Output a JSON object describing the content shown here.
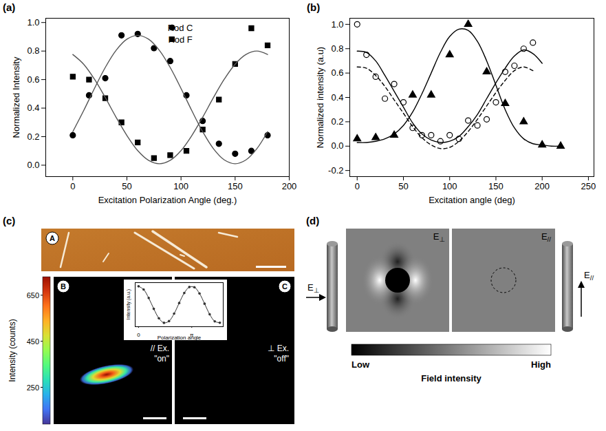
{
  "chart_data": [
    {
      "panel": "(a)",
      "type": "scatter",
      "x_label": "Excitation Polarization Angle (deg.)",
      "y_label": "Normalized Intensity",
      "xlim": [
        -25,
        200
      ],
      "xticks": [
        0,
        50,
        100,
        150,
        200
      ],
      "ylim": [
        -0.08,
        1.03
      ],
      "yticks": [
        {
          "value": 0,
          "label": "0.0"
        },
        0.2,
        0.4,
        0.6,
        0.8,
        {
          "value": 1,
          "label": "1.0"
        }
      ],
      "legend": "top",
      "series": [
        {
          "name": "Rod C",
          "type": "scatter",
          "marker": "circle",
          "color": "#000000",
          "x": [
            0,
            15,
            30,
            45,
            60,
            75,
            90,
            105,
            120,
            135,
            150,
            165,
            180
          ],
          "values": [
            0.21,
            0.49,
            0.61,
            0.91,
            0.92,
            0.82,
            0.73,
            0.49,
            0.31,
            0.15,
            0.08,
            0.1,
            0.21
          ]
        },
        {
          "name": "Rod F",
          "type": "scatter",
          "marker": "square",
          "color": "#000000",
          "x": [
            0,
            15,
            30,
            45,
            60,
            75,
            90,
            105,
            120,
            135,
            150,
            165,
            180
          ],
          "values": [
            0.62,
            0.6,
            0.47,
            0.3,
            0.16,
            0.05,
            0.07,
            0.1,
            0.25,
            0.46,
            0.71,
            0.96,
            0.84
          ]
        },
        {
          "type": "line",
          "line_style": "solid",
          "color": "#555555",
          "x": [
            0,
            10,
            20,
            30,
            40,
            50,
            60,
            70,
            80,
            90,
            100,
            110,
            120,
            130,
            140,
            150,
            160,
            170,
            180
          ],
          "values": [
            0.235,
            0.382,
            0.538,
            0.685,
            0.805,
            0.883,
            0.91,
            0.883,
            0.805,
            0.685,
            0.538,
            0.382,
            0.235,
            0.115,
            0.037,
            0.01,
            0.037,
            0.115,
            0.235
          ]
        },
        {
          "type": "line",
          "line_style": "solid",
          "color": "#555555",
          "x": [
            0,
            10,
            20,
            30,
            40,
            50,
            60,
            70,
            80,
            90,
            100,
            110,
            120,
            130,
            140,
            150,
            160,
            170,
            180
          ],
          "values": [
            0.776,
            0.708,
            0.603,
            0.474,
            0.336,
            0.208,
            0.102,
            0.034,
            0.01,
            0.034,
            0.102,
            0.208,
            0.336,
            0.474,
            0.603,
            0.708,
            0.776,
            0.8,
            0.776
          ]
        }
      ]
    },
    {
      "panel": "(b)",
      "type": "scatter",
      "x_label": "Excitation angle (deg)",
      "y_label": "Normalized intensity (a.u)",
      "xlim": [
        -8,
        256
      ],
      "xticks": [
        0,
        50,
        100,
        150,
        200,
        250
      ],
      "ylim": [
        -0.25,
        1.05
      ],
      "yticks": [
        -0.2,
        {
          "value": 0,
          "label": "0.0"
        },
        0.2,
        0.4,
        0.6,
        0.8,
        {
          "value": 1,
          "label": "1.0"
        }
      ],
      "series": [
        {
          "type": "scatter",
          "marker": "open-circle",
          "color": "#000000",
          "x": [
            0,
            10,
            20,
            30,
            40,
            50,
            60,
            70,
            80,
            90,
            100,
            110,
            120,
            130,
            140,
            150,
            160,
            170,
            180,
            190
          ],
          "values": [
            1.0,
            0.75,
            0.57,
            0.39,
            0.51,
            0.36,
            0.15,
            0.09,
            0.09,
            0.04,
            0.09,
            0.06,
            0.21,
            0.17,
            0.22,
            0.36,
            0.61,
            0.66,
            0.8,
            0.85
          ]
        },
        {
          "type": "scatter",
          "marker": "triangle",
          "color": "#000000",
          "x": [
            0,
            20,
            40,
            60,
            80,
            100,
            120,
            140,
            160,
            180,
            200,
            220
          ],
          "values": [
            0.06,
            0.07,
            0.09,
            0.42,
            0.42,
            0.75,
            1.0,
            0.61,
            0.35,
            0.2,
            0.01,
            0.0
          ]
        },
        {
          "type": "line",
          "line_style": "solid",
          "color": "#000000",
          "x": [
            0,
            10,
            20,
            30,
            40,
            50,
            60,
            70,
            80,
            90,
            100,
            110,
            120,
            130,
            140,
            150,
            160,
            170,
            180,
            190,
            200
          ],
          "values": [
            0.78,
            0.77,
            0.7,
            0.58,
            0.45,
            0.32,
            0.19,
            0.1,
            0.05,
            0.03,
            0.04,
            0.08,
            0.16,
            0.26,
            0.39,
            0.52,
            0.64,
            0.74,
            0.79,
            0.76,
            0.68
          ]
        },
        {
          "type": "line",
          "line_style": "dashed",
          "color": "#000000",
          "x": [
            0,
            10,
            20,
            30,
            40,
            50,
            60,
            70,
            80,
            90,
            100,
            110,
            120,
            130,
            140,
            150,
            160,
            170,
            180,
            190
          ],
          "values": [
            0.65,
            0.64,
            0.58,
            0.49,
            0.38,
            0.27,
            0.16,
            0.07,
            0.01,
            -0.02,
            -0.01,
            0.04,
            0.12,
            0.22,
            0.33,
            0.44,
            0.54,
            0.62,
            0.65,
            0.62
          ]
        },
        {
          "type": "line",
          "line_style": "solid",
          "color": "#000000",
          "x": [
            0,
            10,
            20,
            30,
            40,
            50,
            60,
            70,
            80,
            90,
            100,
            110,
            120,
            130,
            140,
            150,
            160,
            170,
            180,
            190,
            200,
            210,
            220
          ],
          "values": [
            0.03,
            0.03,
            0.04,
            0.06,
            0.1,
            0.17,
            0.28,
            0.43,
            0.6,
            0.77,
            0.9,
            0.96,
            0.95,
            0.86,
            0.7,
            0.5,
            0.3,
            0.15,
            0.06,
            0.02,
            0.01,
            0.0,
            0.0
          ]
        }
      ]
    }
  ],
  "panel_c": {
    "panel": "(c)",
    "afm": {
      "label": "A"
    },
    "colorbar": {
      "label": "Intensity (counts)",
      "range": [
        90,
        730
      ],
      "ticks": [
        250,
        450,
        650
      ]
    },
    "image_b": {
      "label": "B",
      "polarization": "// Ex.",
      "state": "\"on\""
    },
    "image_c": {
      "label": "C",
      "polarization": "⊥ Ex.",
      "state": "\"off\""
    },
    "inset": {
      "type": "line",
      "x_label": "Polarization angle",
      "y_label": "Intensity (a.u.)",
      "xlim": [
        -0.2,
        5.0
      ],
      "xticks": [
        0,
        {
          "value": 3.1416,
          "label": "π"
        }
      ],
      "ylim": [
        -0.1,
        1.1
      ],
      "marker": "circle",
      "color": "#333333",
      "x": [
        0,
        0.3,
        0.6,
        0.9,
        1.2,
        1.5,
        1.8,
        2.1,
        2.4,
        2.7,
        3.0,
        3.3,
        3.6,
        3.9,
        4.2,
        4.5,
        4.8
      ],
      "values": [
        1.0,
        0.913,
        0.681,
        0.386,
        0.131,
        0.005,
        0.052,
        0.255,
        0.544,
        0.817,
        0.98,
        0.974,
        0.804,
        0.525,
        0.238,
        0.045,
        0.008
      ]
    }
  },
  "panel_d": {
    "panel": "(d)",
    "arrow_perpendicular": "E⊥",
    "arrow_parallel": "E//",
    "map_perpendicular": {
      "label": "E⊥"
    },
    "map_parallel": {
      "label": "E//"
    },
    "colorbar": {
      "label": "Field intensity",
      "low": "Low",
      "high": "High"
    }
  }
}
